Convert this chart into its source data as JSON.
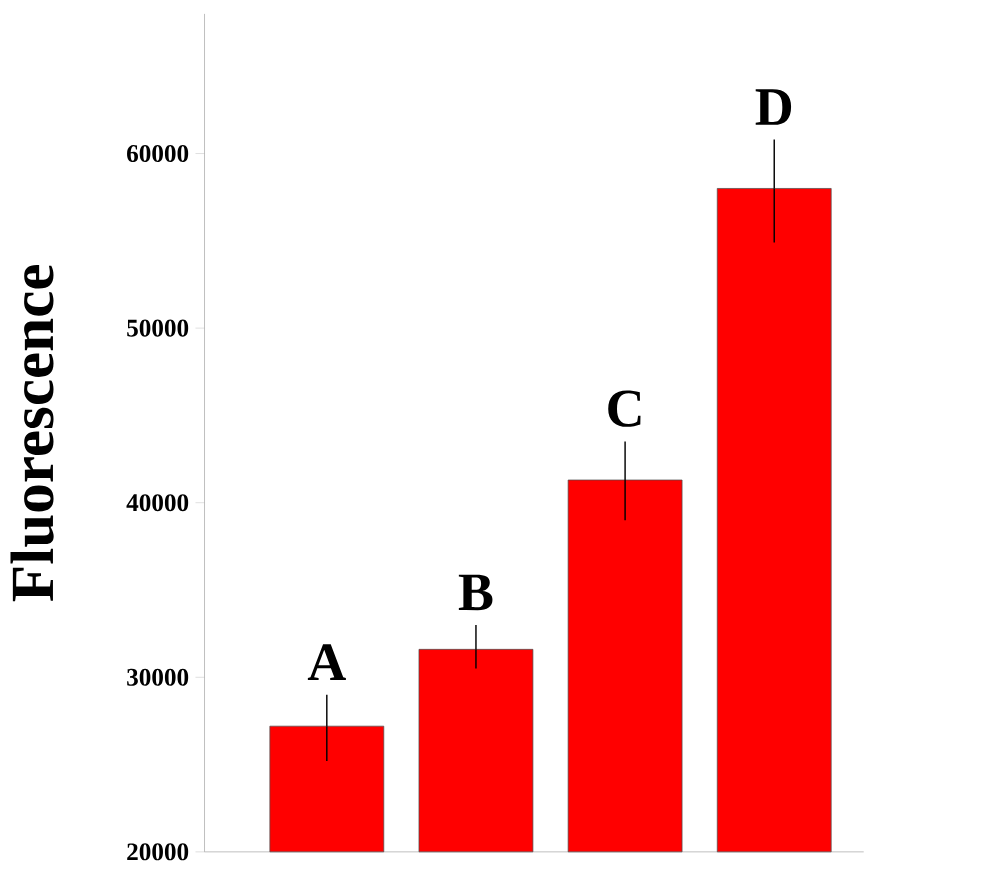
{
  "chart_data": {
    "type": "bar",
    "ylabel": "Fluorescence",
    "categories": [
      null,
      null,
      null,
      null
    ],
    "values": [
      27200,
      31600,
      41300,
      58000
    ],
    "errors": [
      [
        25200,
        29000
      ],
      [
        30500,
        33000
      ],
      [
        39000,
        43500
      ],
      [
        54900,
        60800
      ]
    ],
    "color": "#ff0000",
    "annotations": [
      "A",
      "B",
      "C",
      "D"
    ],
    "ylim": [
      20000,
      68000
    ],
    "yticks": [
      20000,
      30000,
      40000,
      50000,
      60000
    ]
  }
}
